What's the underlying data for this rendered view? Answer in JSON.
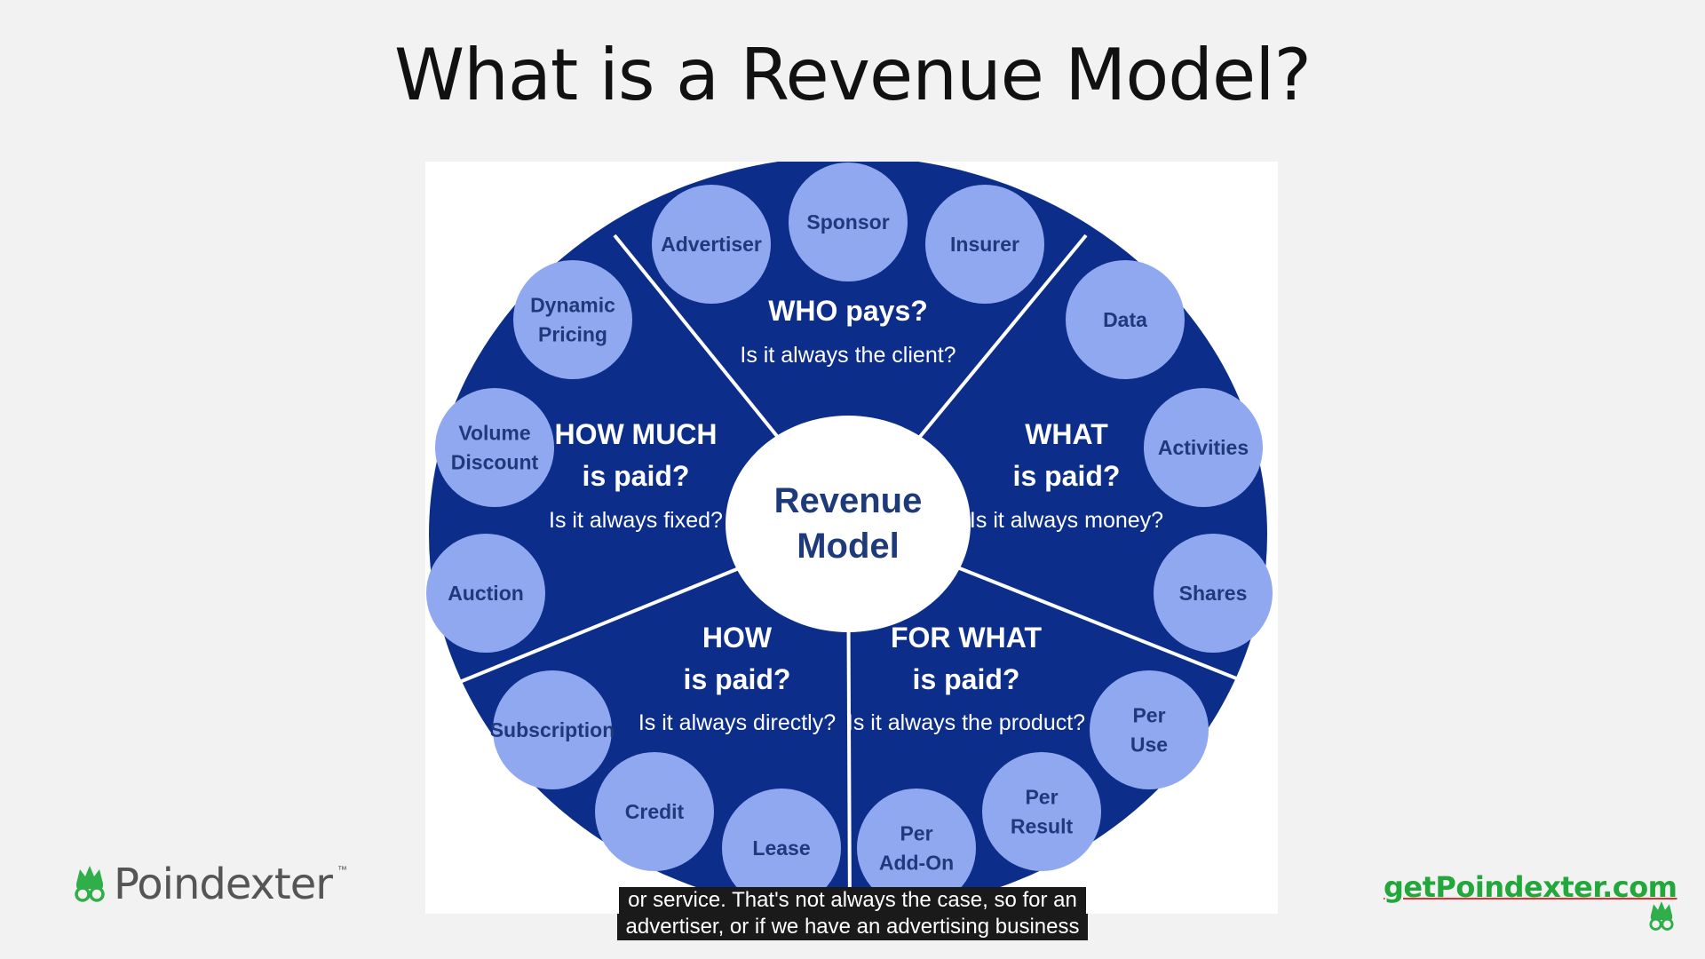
{
  "slide": {
    "title": "What is a Revenue Model?"
  },
  "diagram": {
    "center": [
      "Revenue",
      "Model"
    ],
    "sections": [
      {
        "id": "who",
        "title": [
          "WHO pays?"
        ],
        "subtitle": "Is it always the client?"
      },
      {
        "id": "what",
        "title": [
          "WHAT",
          "is paid?"
        ],
        "subtitle": "Is it always money?"
      },
      {
        "id": "for-what",
        "title": [
          "FOR WHAT",
          "is paid?"
        ],
        "subtitle": "Is it always the product?"
      },
      {
        "id": "how",
        "title": [
          "HOW",
          "is paid?"
        ],
        "subtitle": "Is it always directly?"
      },
      {
        "id": "how-much",
        "title": [
          "HOW MUCH",
          "is paid?"
        ],
        "subtitle": "Is it always fixed?"
      }
    ],
    "bubbles": [
      {
        "id": "advertiser",
        "lines": [
          "Advertiser"
        ]
      },
      {
        "id": "sponsor",
        "lines": [
          "Sponsor"
        ]
      },
      {
        "id": "insurer",
        "lines": [
          "Insurer"
        ]
      },
      {
        "id": "data",
        "lines": [
          "Data"
        ]
      },
      {
        "id": "activities",
        "lines": [
          "Activities"
        ]
      },
      {
        "id": "shares",
        "lines": [
          "Shares"
        ]
      },
      {
        "id": "per-use",
        "lines": [
          "Per",
          "Use"
        ]
      },
      {
        "id": "per-result",
        "lines": [
          "Per",
          "Result"
        ]
      },
      {
        "id": "per-add-on",
        "lines": [
          "Per",
          "Add-On"
        ]
      },
      {
        "id": "lease",
        "lines": [
          "Lease"
        ]
      },
      {
        "id": "credit",
        "lines": [
          "Credit"
        ]
      },
      {
        "id": "subscription",
        "lines": [
          "Subscription"
        ]
      },
      {
        "id": "auction",
        "lines": [
          "Auction"
        ]
      },
      {
        "id": "volume-discount",
        "lines": [
          "Volume",
          "Discount"
        ]
      },
      {
        "id": "dynamic-pricing",
        "lines": [
          "Dynamic",
          "Pricing"
        ]
      }
    ],
    "colors": {
      "ring": "#0c2e8a",
      "bubble": "#8fa8f0",
      "text": "#1e3a7a",
      "center": "#ffffff"
    }
  },
  "branding": {
    "logo_text": "Poindexter",
    "logo_tm": "™",
    "site": "getPoindexter.com"
  },
  "captions": [
    "or service. That's not always the case, so for an",
    "advertiser, or if we have an advertising business"
  ]
}
